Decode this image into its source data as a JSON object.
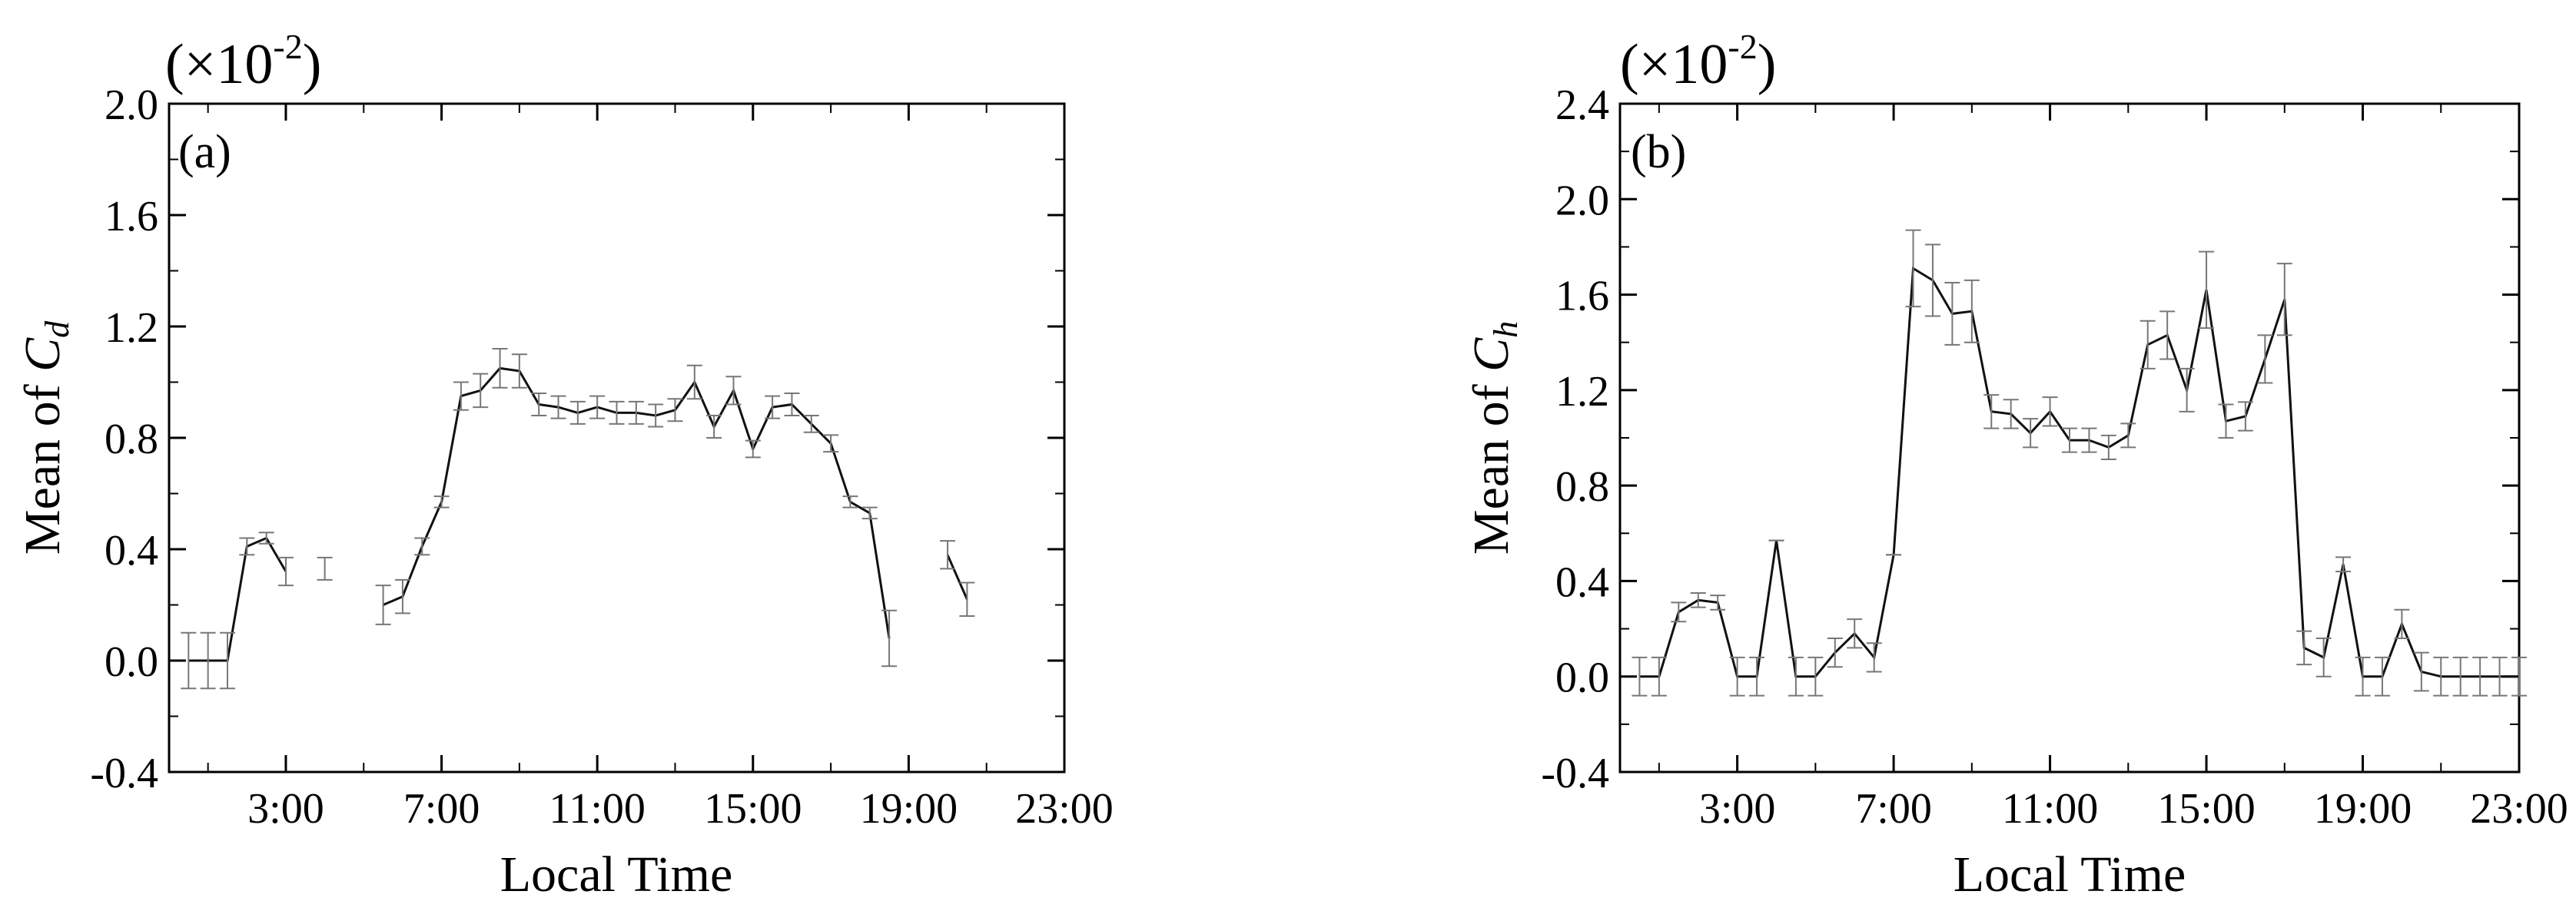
{
  "chart_data": [
    {
      "type": "line",
      "panel_label": "(a)",
      "multiplier_label": "(×10",
      "multiplier_exp": "-2",
      "ylabel_prefix": "Mean of ",
      "ylabel_var": "C",
      "ylabel_sub": "d",
      "xlabel": "Local Time",
      "xlim": [
        0,
        23
      ],
      "ylim": [
        -0.4,
        2.0
      ],
      "yticks": [
        "-0.4",
        "0.0",
        "0.4",
        "0.8",
        "1.2",
        "1.6",
        "2.0"
      ],
      "xticks": [
        {
          "x": 3,
          "label": "3:00"
        },
        {
          "x": 7,
          "label": "7:00"
        },
        {
          "x": 11,
          "label": "11:00"
        },
        {
          "x": 15,
          "label": "15:00"
        },
        {
          "x": 19,
          "label": "19:00"
        },
        {
          "x": 23,
          "label": "23:00"
        }
      ],
      "series": [
        {
          "x": [
            0.5,
            1.0,
            1.5,
            2.0,
            2.5,
            3.0,
            3.5,
            4.0,
            4.5,
            5.0,
            5.5,
            6.0,
            6.5,
            7.0,
            7.5,
            8.0,
            8.5,
            9.0,
            9.5,
            10.0,
            10.5,
            11.0,
            11.5,
            12.0,
            12.5,
            13.0,
            13.5,
            14.0,
            14.5,
            15.0,
            15.5,
            16.0,
            16.5,
            17.0,
            17.5,
            18.0,
            18.5,
            19.0,
            19.5,
            20.0,
            20.5
          ],
          "y": [
            0.0,
            0.0,
            0.0,
            0.41,
            0.44,
            0.32,
            null,
            0.33,
            null,
            null,
            0.2,
            0.23,
            0.41,
            0.57,
            0.95,
            0.97,
            1.05,
            1.04,
            0.92,
            0.91,
            0.89,
            0.91,
            0.89,
            0.89,
            0.88,
            0.9,
            1.0,
            0.84,
            0.97,
            0.76,
            0.91,
            0.92,
            0.85,
            0.78,
            0.57,
            0.53,
            0.08,
            null,
            null,
            0.38,
            0.22
          ],
          "err": [
            0.1,
            0.1,
            0.1,
            0.03,
            0.02,
            0.05,
            null,
            0.04,
            null,
            null,
            0.07,
            0.06,
            0.03,
            0.02,
            0.05,
            0.06,
            0.07,
            0.06,
            0.04,
            0.04,
            0.04,
            0.04,
            0.04,
            0.04,
            0.04,
            0.04,
            0.06,
            0.04,
            0.05,
            0.03,
            0.04,
            0.04,
            0.03,
            0.03,
            0.02,
            0.02,
            0.1,
            null,
            null,
            0.05,
            0.06
          ]
        }
      ]
    },
    {
      "type": "line",
      "panel_label": "(b)",
      "multiplier_label": "(×10",
      "multiplier_exp": "-2",
      "ylabel_prefix": "Mean of ",
      "ylabel_var": "C",
      "ylabel_sub": "h",
      "xlabel": "Local Time",
      "xlim": [
        0,
        23
      ],
      "ylim": [
        -0.4,
        2.4
      ],
      "yticks": [
        "-0.4",
        "0.0",
        "0.4",
        "0.8",
        "1.2",
        "1.6",
        "2.0",
        "2.4"
      ],
      "xticks": [
        {
          "x": 3,
          "label": "3:00"
        },
        {
          "x": 7,
          "label": "7:00"
        },
        {
          "x": 11,
          "label": "11:00"
        },
        {
          "x": 15,
          "label": "15:00"
        },
        {
          "x": 19,
          "label": "19:00"
        },
        {
          "x": 23,
          "label": "23:00"
        }
      ],
      "series": [
        {
          "x": [
            0.5,
            1.0,
            1.5,
            2.0,
            2.5,
            3.0,
            3.5,
            4.0,
            4.5,
            5.0,
            5.5,
            6.0,
            6.5,
            7.0,
            7.5,
            8.0,
            8.5,
            9.0,
            9.5,
            10.0,
            10.5,
            11.0,
            11.5,
            12.0,
            12.5,
            13.0,
            13.5,
            14.0,
            14.5,
            15.0,
            15.5,
            16.0,
            16.5,
            17.0,
            17.5,
            18.0,
            18.5,
            19.0,
            19.5,
            20.0,
            20.5,
            21.0,
            21.5,
            22.0,
            22.5,
            23.0
          ],
          "y": [
            0.0,
            0.0,
            0.27,
            0.32,
            0.31,
            0.0,
            0.0,
            0.57,
            0.0,
            0.0,
            0.1,
            0.18,
            0.08,
            0.51,
            1.71,
            1.66,
            1.52,
            1.53,
            1.11,
            1.1,
            1.02,
            1.11,
            0.99,
            0.99,
            0.96,
            1.01,
            1.39,
            1.43,
            1.2,
            1.62,
            1.07,
            1.09,
            1.33,
            1.58,
            0.12,
            0.08,
            0.47,
            0.0,
            0.0,
            0.22,
            0.02,
            0.0,
            0.0,
            0.0,
            0.0,
            0.0
          ],
          "err": [
            0.08,
            0.08,
            0.04,
            0.03,
            0.03,
            0.08,
            0.08,
            0.0,
            0.08,
            0.08,
            0.06,
            0.06,
            0.06,
            0.0,
            0.16,
            0.15,
            0.13,
            0.13,
            0.07,
            0.06,
            0.06,
            0.06,
            0.05,
            0.05,
            0.05,
            0.05,
            0.1,
            0.1,
            0.09,
            0.16,
            0.07,
            0.06,
            0.1,
            0.15,
            0.07,
            0.08,
            0.03,
            0.08,
            0.08,
            0.06,
            0.08,
            0.08,
            0.08,
            0.08,
            0.08,
            0.08
          ]
        }
      ]
    }
  ]
}
